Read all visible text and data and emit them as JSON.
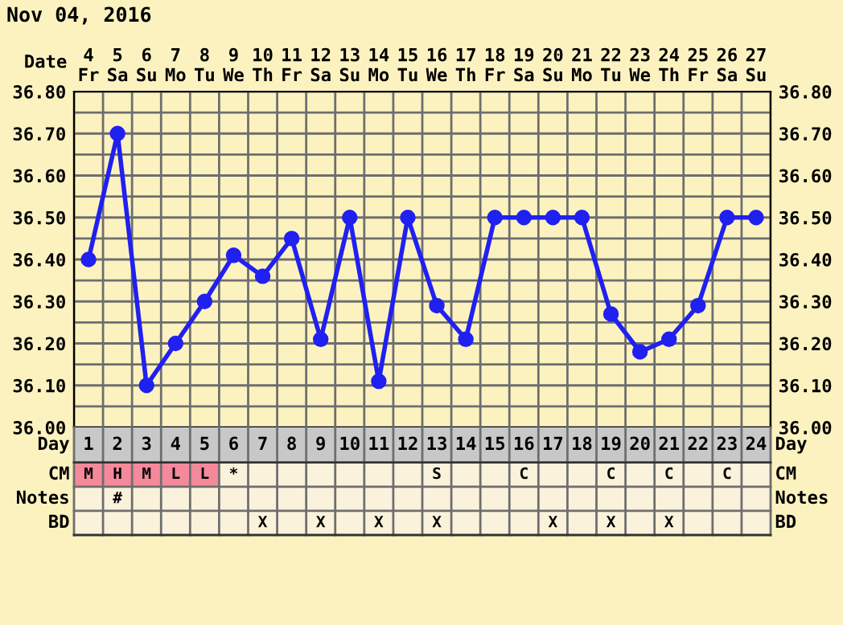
{
  "chart_data": [
    {
      "type": "line",
      "title": "Nov 04, 2016",
      "xlabel": "Date",
      "categories": [
        "4\nFr",
        "5\nSa",
        "6\nSu",
        "7\nMo",
        "8\nTu",
        "9\nWe",
        "10\nTh",
        "11\nFr",
        "12\nSa",
        "13\nSu",
        "14\nMo",
        "15\nTu",
        "16\nWe",
        "17\nTh",
        "18\nFr",
        "19\nSa",
        "20\nSu",
        "21\nMo",
        "22\nTu",
        "23\nWe",
        "24\nTh",
        "25\nFr",
        "26\nSa",
        "27\nSu"
      ],
      "series": [
        {
          "color": "#2020f0",
          "values": [
            36.4,
            36.7,
            36.1,
            36.2,
            36.3,
            36.41,
            36.36,
            36.45,
            36.21,
            36.5,
            36.11,
            36.5,
            36.29,
            36.21,
            36.5,
            36.5,
            36.5,
            36.5,
            36.27,
            36.18,
            36.21,
            36.29,
            36.5,
            36.5
          ]
        }
      ],
      "ylim": [
        36.0,
        36.8
      ],
      "yticks": [
        {
          "value": 36.0,
          "label": "36.00"
        },
        {
          "value": 36.05,
          "label": null
        },
        {
          "value": 36.1,
          "label": "36.10"
        },
        {
          "value": 36.15,
          "label": null
        },
        {
          "value": 36.2,
          "label": "36.20"
        },
        {
          "value": 36.25,
          "label": null
        },
        {
          "value": 36.3,
          "label": "36.30"
        },
        {
          "value": 36.35,
          "label": null
        },
        {
          "value": 36.4,
          "label": "36.40"
        },
        {
          "value": 36.45,
          "label": null
        },
        {
          "value": 36.5,
          "label": "36.50"
        },
        {
          "value": 36.55,
          "label": null
        },
        {
          "value": 36.6,
          "label": "36.60"
        },
        {
          "value": 36.65,
          "label": null
        },
        {
          "value": 36.7,
          "label": "36.70"
        },
        {
          "value": 36.75,
          "label": null
        },
        {
          "value": 36.8,
          "label": "36.80"
        }
      ],
      "y2lim": [
        36.0,
        36.8
      ],
      "y2ticks": [
        {
          "value": 36.0,
          "label": "36.00"
        },
        {
          "value": 36.05,
          "label": null
        },
        {
          "value": 36.1,
          "label": "36.10"
        },
        {
          "value": 36.15,
          "label": null
        },
        {
          "value": 36.2,
          "label": "36.20"
        },
        {
          "value": 36.25,
          "label": null
        },
        {
          "value": 36.3,
          "label": "36.30"
        },
        {
          "value": 36.35,
          "label": null
        },
        {
          "value": 36.4,
          "label": "36.40"
        },
        {
          "value": 36.45,
          "label": null
        },
        {
          "value": 36.5,
          "label": "36.50"
        },
        {
          "value": 36.55,
          "label": null
        },
        {
          "value": 36.6,
          "label": "36.60"
        },
        {
          "value": 36.65,
          "label": null
        },
        {
          "value": 36.7,
          "label": "36.70"
        },
        {
          "value": 36.75,
          "label": null
        },
        {
          "value": 36.8,
          "label": "36.80"
        }
      ],
      "grid": true,
      "marker": "circle",
      "line_style": "solid",
      "legend": false
    },
    {
      "type": "heatmap",
      "xlabel": "Day",
      "bands": [
        {
          "axis": "x",
          "from": "1",
          "to": "5",
          "color": "#f4899b",
          "label": null
        }
      ],
      "categories": [
        "1",
        "2",
        "3",
        "4",
        "5",
        "6",
        "7",
        "8",
        "9",
        "10",
        "11",
        "12",
        "13",
        "14",
        "15",
        "16",
        "17",
        "18",
        "19",
        "20",
        "21",
        "22",
        "23",
        "24"
      ],
      "y_categories": [
        "CM",
        "Notes",
        "BD"
      ],
      "y2_categories": [
        "CM",
        "Notes",
        "BD"
      ],
      "cells": [
        [
          null,
          null,
          null,
          null,
          null,
          null,
          null,
          null,
          null,
          null,
          null,
          null,
          null,
          null,
          null,
          null,
          null,
          null,
          null,
          null,
          null,
          null,
          null,
          null
        ],
        [
          null,
          null,
          null,
          null,
          null,
          null,
          null,
          null,
          null,
          null,
          null,
          null,
          null,
          null,
          null,
          null,
          null,
          null,
          null,
          null,
          null,
          null,
          null,
          null
        ],
        [
          null,
          null,
          null,
          null,
          null,
          null,
          null,
          null,
          null,
          null,
          null,
          null,
          null,
          null,
          null,
          null,
          null,
          null,
          null,
          null,
          null,
          null,
          null,
          null
        ]
      ],
      "cell_labels": [
        [
          "M",
          "H",
          "M",
          "L",
          "L",
          "*",
          null,
          null,
          null,
          null,
          null,
          null,
          "S",
          null,
          null,
          "C",
          null,
          null,
          "C",
          null,
          "C",
          null,
          "C",
          null
        ],
        [
          null,
          "#",
          null,
          null,
          null,
          null,
          null,
          null,
          null,
          null,
          null,
          null,
          null,
          null,
          null,
          null,
          null,
          null,
          null,
          null,
          null,
          null,
          null,
          null
        ],
        [
          null,
          null,
          null,
          null,
          null,
          null,
          "X",
          null,
          "X",
          null,
          "X",
          null,
          "X",
          null,
          null,
          null,
          "X",
          null,
          "X",
          null,
          "X",
          null,
          null,
          null
        ]
      ]
    }
  ]
}
